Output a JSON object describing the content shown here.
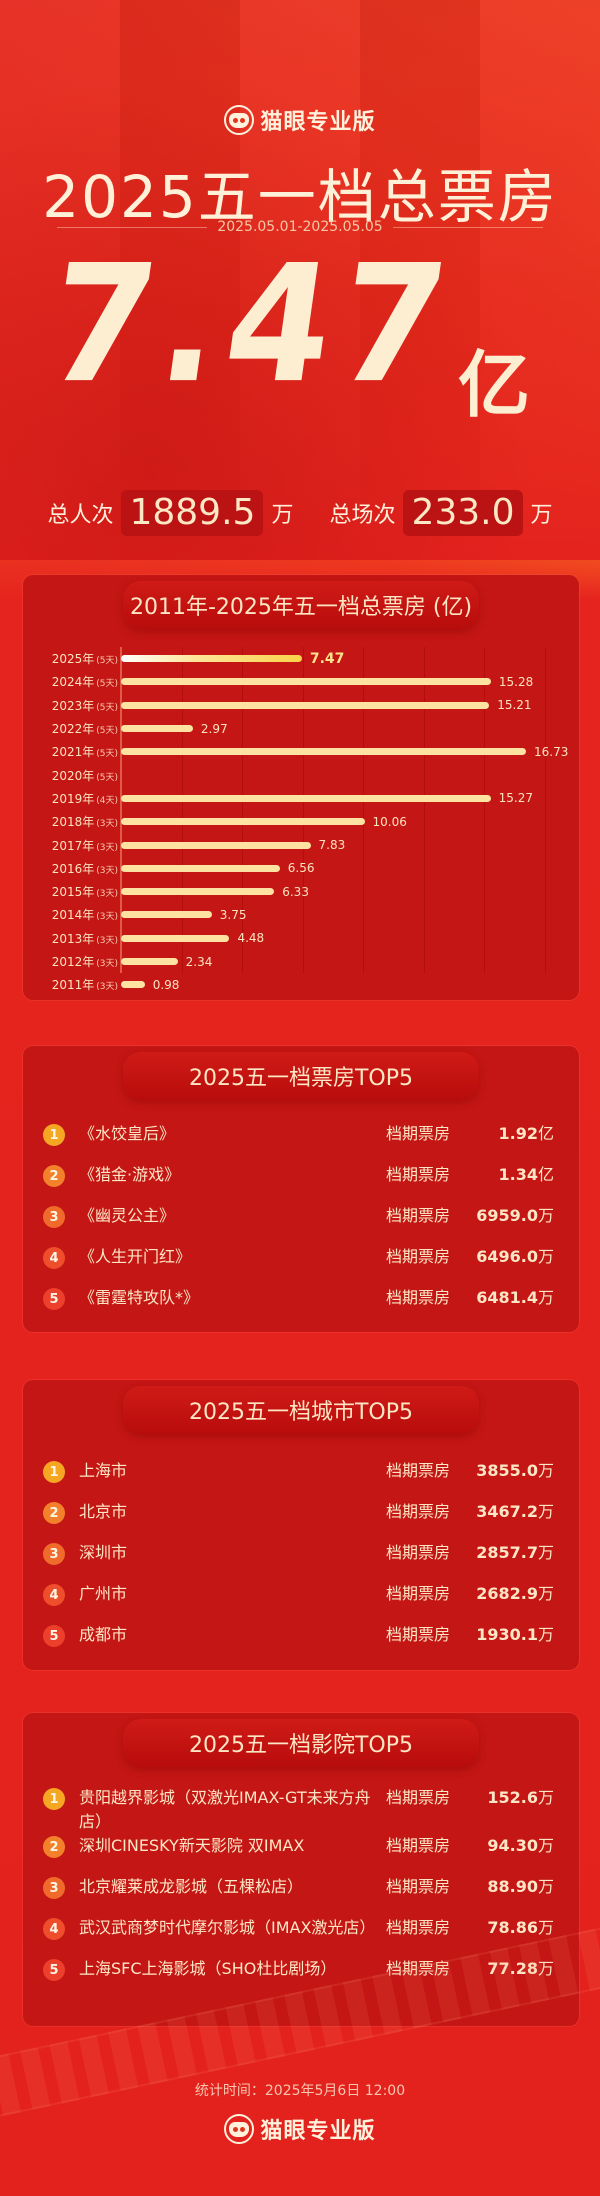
{
  "brand": {
    "name": "猫眼专业版",
    "logo_icon": "cat-face-icon"
  },
  "hero": {
    "title": "2025五一档总票房",
    "date_range": "2025.05.01-2025.05.05",
    "total_box_office": "7.47",
    "total_unit": "亿",
    "admissions_label": "总人次",
    "admissions_value": "1889.5",
    "admissions_unit": "万",
    "screenings_label": "总场次",
    "screenings_value": "233.0",
    "screenings_unit": "万"
  },
  "chart_data": {
    "type": "bar",
    "orientation": "horizontal",
    "title": "2011年-2025年五一档总票房 (亿)",
    "xlabel": "",
    "ylabel": "",
    "unit": "亿",
    "categories": [
      "2025年",
      "2024年",
      "2023年",
      "2022年",
      "2021年",
      "2020年",
      "2019年",
      "2018年",
      "2017年",
      "2016年",
      "2015年",
      "2014年",
      "2013年",
      "2012年",
      "2011年"
    ],
    "days": [
      "(5天)",
      "(5天)",
      "(5天)",
      "(5天)",
      "(5天)",
      "(5天)",
      "(4天)",
      "(3天)",
      "(3天)",
      "(3天)",
      "(3天)",
      "(3天)",
      "(3天)",
      "(3天)",
      "(3天)"
    ],
    "values": [
      7.47,
      15.28,
      15.21,
      2.97,
      16.73,
      null,
      15.27,
      10.06,
      7.83,
      6.56,
      6.33,
      3.75,
      4.48,
      2.34,
      0.98
    ],
    "value_labels": [
      "7.47",
      "15.28",
      "15.21",
      "2.97",
      "16.73",
      "",
      "15.27",
      "10.06",
      "7.83",
      "6.56",
      "6.33",
      "3.75",
      "4.48",
      "2.34",
      "0.98"
    ],
    "highlight_index": 0,
    "xlim": [
      0,
      18
    ],
    "grid": true,
    "legend": "none",
    "colors": {
      "bar": "#fde2a2",
      "highlight_start": "#ffffff",
      "highlight_end": "#f9d34a"
    }
  },
  "movies_top5": {
    "title": "2025五一档票房TOP5",
    "column_label": "档期票房",
    "items": [
      {
        "rank": "1",
        "name": "《水饺皇后》",
        "value": "1.92",
        "unit": "亿"
      },
      {
        "rank": "2",
        "name": "《猎金·游戏》",
        "value": "1.34",
        "unit": "亿"
      },
      {
        "rank": "3",
        "name": "《幽灵公主》",
        "value": "6959.0",
        "unit": "万"
      },
      {
        "rank": "4",
        "name": "《人生开门红》",
        "value": "6496.0",
        "unit": "万"
      },
      {
        "rank": "5",
        "name": "《雷霆特攻队*》",
        "value": "6481.4",
        "unit": "万"
      }
    ]
  },
  "cities_top5": {
    "title": "2025五一档城市TOP5",
    "column_label": "档期票房",
    "items": [
      {
        "rank": "1",
        "name": "上海市",
        "value": "3855.0",
        "unit": "万"
      },
      {
        "rank": "2",
        "name": "北京市",
        "value": "3467.2",
        "unit": "万"
      },
      {
        "rank": "3",
        "name": "深圳市",
        "value": "2857.7",
        "unit": "万"
      },
      {
        "rank": "4",
        "name": "广州市",
        "value": "2682.9",
        "unit": "万"
      },
      {
        "rank": "5",
        "name": "成都市",
        "value": "1930.1",
        "unit": "万"
      }
    ]
  },
  "cinemas_top5": {
    "title": "2025五一档影院TOP5",
    "column_label": "档期票房",
    "items": [
      {
        "rank": "1",
        "name": "贵阳越界影城（双激光IMAX-GT未来方舟店）",
        "value": "152.6",
        "unit": "万"
      },
      {
        "rank": "2",
        "name": "深圳CINESKY新天影院 双IMAX",
        "value": "94.30",
        "unit": "万"
      },
      {
        "rank": "3",
        "name": "北京耀莱成龙影城（五棵松店）",
        "value": "88.90",
        "unit": "万"
      },
      {
        "rank": "4",
        "name": "武汉武商梦时代摩尔影城（IMAX激光店）",
        "value": "78.86",
        "unit": "万"
      },
      {
        "rank": "5",
        "name": "上海SFC上海影城（SHO杜比剧场）",
        "value": "77.28",
        "unit": "万"
      }
    ]
  },
  "rank_colors": [
    "#f5a623",
    "#f3802a",
    "#f06a2c",
    "#ee4e2c",
    "#ec3f2c"
  ],
  "footer": {
    "stat_time": "统计时间：2025年5月6日  12:00"
  }
}
